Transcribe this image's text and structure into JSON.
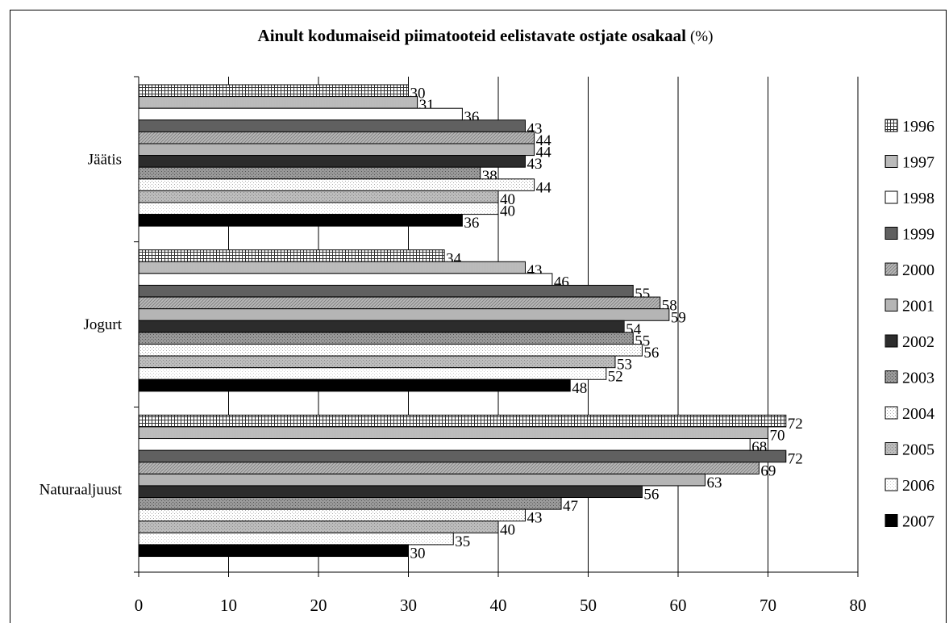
{
  "chart_data": {
    "type": "bar",
    "orientation": "horizontal",
    "title": "Ainult kodumaiseid piimatooteid eelistavate ostjate osakaal",
    "title_unit": "(%)",
    "categories": [
      "Jäätis",
      "Jogurt",
      "Naturaaljuust"
    ],
    "xlabel": "",
    "ylabel": "",
    "xlim": [
      0,
      80
    ],
    "x_ticks": [
      "0",
      "10",
      "20",
      "30",
      "40",
      "50",
      "60",
      "70",
      "80"
    ],
    "grid": "vertical",
    "legend_position": "right",
    "series": [
      {
        "name": "1996",
        "values": [
          30,
          34,
          72
        ]
      },
      {
        "name": "1997",
        "values": [
          31,
          43,
          70
        ]
      },
      {
        "name": "1998",
        "values": [
          36,
          46,
          68
        ]
      },
      {
        "name": "1999",
        "values": [
          43,
          55,
          72
        ]
      },
      {
        "name": "2000",
        "values": [
          44,
          58,
          69
        ]
      },
      {
        "name": "2001",
        "values": [
          44,
          59,
          63
        ]
      },
      {
        "name": "2002",
        "values": [
          43,
          54,
          56
        ]
      },
      {
        "name": "2003",
        "values": [
          38,
          55,
          47
        ]
      },
      {
        "name": "2004",
        "values": [
          44,
          56,
          43
        ]
      },
      {
        "name": "2005",
        "values": [
          40,
          53,
          40
        ]
      },
      {
        "name": "2006",
        "values": [
          40,
          52,
          35
        ]
      },
      {
        "name": "2007",
        "values": [
          36,
          48,
          30
        ]
      }
    ],
    "series_fills": [
      {
        "base": "#ffffff",
        "pattern": "grid",
        "color": "#333333"
      },
      {
        "base": "#ffffff",
        "pattern": "vlines",
        "color": "#555555"
      },
      {
        "base": "#ffffff",
        "pattern": "none",
        "color": "#000000"
      },
      {
        "base": "#7a7a7a",
        "pattern": "hlines",
        "color": "#333333"
      },
      {
        "base": "#b8b8b8",
        "pattern": "diag",
        "color": "#7a7a7a"
      },
      {
        "base": "#b5b5b5",
        "pattern": "none",
        "color": "#000000"
      },
      {
        "base": "#111111",
        "pattern": "vlines",
        "color": "#555555"
      },
      {
        "base": "#9a9a9a",
        "pattern": "dots",
        "color": "#555555"
      },
      {
        "base": "#ffffff",
        "pattern": "dots",
        "color": "#aaaaaa"
      },
      {
        "base": "#bdbdbd",
        "pattern": "dots",
        "color": "#888888"
      },
      {
        "base": "#ffffff",
        "pattern": "dots",
        "color": "#cccccc"
      },
      {
        "base": "#000000",
        "pattern": "none",
        "color": "#000000"
      }
    ]
  }
}
